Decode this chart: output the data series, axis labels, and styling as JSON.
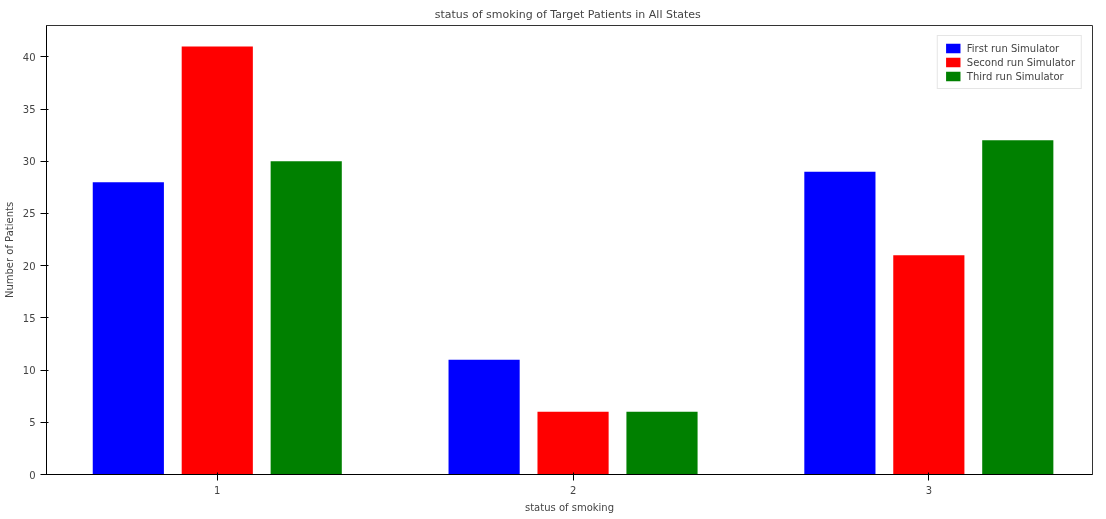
{
  "chart_data": {
    "type": "bar",
    "title": "status of smoking  of Target Patients in All States",
    "xlabel": "status of smoking",
    "ylabel": "Number of Patients",
    "x": [
      1,
      2,
      3
    ],
    "series": [
      {
        "name": "First run Simulator",
        "color": "#0000ff",
        "values": [
          28,
          11,
          29
        ]
      },
      {
        "name": "Second run Simulator",
        "color": "#ff0000",
        "values": [
          41,
          6,
          21
        ]
      },
      {
        "name": "Third run Simulator",
        "color": "#008000",
        "values": [
          30,
          6,
          32
        ]
      }
    ],
    "xlim": [
      0.52,
      3.46
    ],
    "xticks": [
      1,
      2,
      3
    ],
    "ylim": [
      0,
      43
    ],
    "yticks": [
      0,
      5,
      10,
      15,
      20,
      25,
      30,
      35,
      40
    ],
    "grid": false,
    "legend": "top right"
  }
}
